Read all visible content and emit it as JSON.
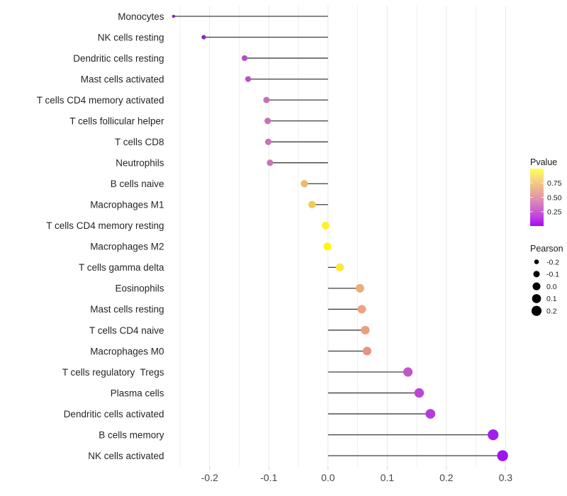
{
  "chart_data": {
    "type": "scatter",
    "variant": "lollipop",
    "orientation": "horizontal",
    "title": "",
    "xlabel": "",
    "ylabel": "",
    "xlim": [
      -0.27,
      0.32
    ],
    "x_ticks": [
      -0.2,
      -0.1,
      0.0,
      0.1,
      0.2,
      0.3
    ],
    "x_tick_labels": [
      "-0.2",
      "-0.1",
      "0.0",
      "0.1",
      "0.2",
      "0.3"
    ],
    "x_minor_step": 0.05,
    "grid": true,
    "stem_origin": 0.0,
    "points": [
      {
        "label": "Monocytes",
        "pearson": -0.261,
        "color": "#7C1FA8"
      },
      {
        "label": "NK cells resting",
        "pearson": -0.21,
        "color": "#8B29BE"
      },
      {
        "label": "Dendritic cells resting",
        "pearson": -0.141,
        "color": "#B54CC9"
      },
      {
        "label": "Mast cells activated",
        "pearson": -0.135,
        "color": "#B951C6"
      },
      {
        "label": "T cells CD4 memory activated",
        "pearson": -0.104,
        "color": "#C96FBA"
      },
      {
        "label": "T cells follicular helper",
        "pearson": -0.102,
        "color": "#CA70B8"
      },
      {
        "label": "T cells CD8",
        "pearson": -0.101,
        "color": "#CA71B7"
      },
      {
        "label": "Neutrophils",
        "pearson": -0.098,
        "color": "#CB73B4"
      },
      {
        "label": "B cells naive",
        "pearson": -0.04,
        "color": "#ECBC67"
      },
      {
        "label": "Macrophages M1",
        "pearson": -0.027,
        "color": "#F1CA5B"
      },
      {
        "label": "T cells CD4 memory resting",
        "pearson": -0.004,
        "color": "#FDF032"
      },
      {
        "label": "Macrophages M2",
        "pearson": -0.001,
        "color": "#FFF606"
      },
      {
        "label": "T cells gamma delta",
        "pearson": 0.02,
        "color": "#F8E93C"
      },
      {
        "label": "Eosinophils",
        "pearson": 0.054,
        "color": "#ECAC75"
      },
      {
        "label": "Mast cells resting",
        "pearson": 0.057,
        "color": "#EBA57E"
      },
      {
        "label": "T cells CD4 naive",
        "pearson": 0.063,
        "color": "#E99F81"
      },
      {
        "label": "Macrophages M0",
        "pearson": 0.066,
        "color": "#E69383"
      },
      {
        "label": "T cells regulatory  Tregs",
        "pearson": 0.135,
        "color": "#C454C9"
      },
      {
        "label": "Plasma cells",
        "pearson": 0.154,
        "color": "#BE46D4"
      },
      {
        "label": "Dendritic cells activated",
        "pearson": 0.173,
        "color": "#B53ADF"
      },
      {
        "label": "B cells memory",
        "pearson": 0.279,
        "color": "#A31DEC"
      },
      {
        "label": "NK cells activated",
        "pearson": 0.295,
        "color": "#A013F1"
      }
    ],
    "legend_pvalue": {
      "title": "Pvalue",
      "tick_labels": [
        "0.75",
        "0.50",
        "0.25"
      ],
      "tick_values": [
        0.75,
        0.5,
        0.25
      ],
      "gradient_bottom_to_top": [
        {
          "offset": 0.0,
          "color": "#AA07F8"
        },
        {
          "offset": 0.14,
          "color": "#BC3BE3"
        },
        {
          "offset": 0.3,
          "color": "#CE68CD"
        },
        {
          "offset": 0.44,
          "color": "#DD89B7"
        },
        {
          "offset": 0.56,
          "color": "#E6A29E"
        },
        {
          "offset": 0.7,
          "color": "#EFBF8A"
        },
        {
          "offset": 0.84,
          "color": "#F8DC7E"
        },
        {
          "offset": 1.0,
          "color": "#FFFF50"
        }
      ]
    },
    "legend_pearson": {
      "title": "Pearson",
      "items": [
        {
          "label": "-0.2",
          "value": -0.2
        },
        {
          "label": "-0.1",
          "value": -0.1
        },
        {
          "label": "0.0",
          "value": 0.0
        },
        {
          "label": "0.1",
          "value": 0.1
        },
        {
          "label": "0.2",
          "value": 0.2
        }
      ],
      "dot_color": "#000000"
    },
    "colors": {
      "stem": "#3D3D3D",
      "grid_major": "#E7E7E7",
      "grid_minor": "#EFEFEF",
      "axis_text": "#474747",
      "category_text": "#262626",
      "legend_text": "#1A1A1A",
      "background": "#FFFFFF"
    }
  }
}
